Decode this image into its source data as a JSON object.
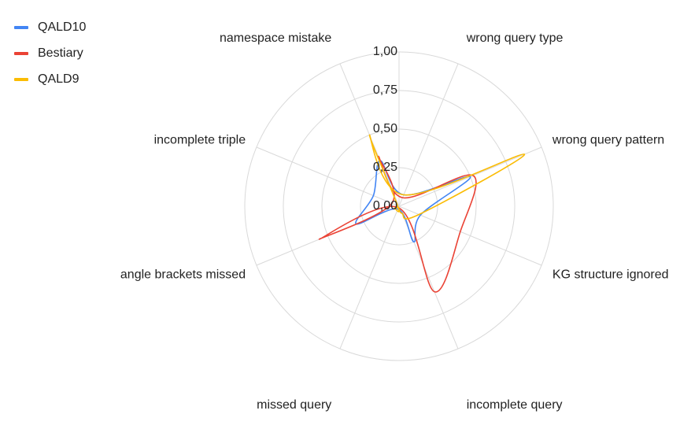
{
  "chart_data": {
    "type": "radar",
    "title": "",
    "categories": [
      "wrong query type",
      "wrong query pattern",
      "KG structure ignored",
      "incomplete query",
      "missed query",
      "angle brackets missed",
      "incomplete triple",
      "namespace mistake"
    ],
    "tick_labels": [
      "0,00",
      "0,25",
      "0,50",
      "0,75",
      "1,00"
    ],
    "rlim": [
      0,
      1
    ],
    "legend_position": "top-left",
    "series": [
      {
        "name": "QALD10",
        "color": "#4285F4",
        "values": [
          0.08,
          0.5,
          0.15,
          0.25,
          0.02,
          0.3,
          0.18,
          0.32
        ]
      },
      {
        "name": "Bestiary",
        "color": "#EA4335",
        "values": [
          0.06,
          0.52,
          0.43,
          0.6,
          0.01,
          0.56,
          0.05,
          0.35
        ]
      },
      {
        "name": "QALD9",
        "color": "#FBBC04",
        "values": [
          0.08,
          0.88,
          0.14,
          0.05,
          0.01,
          0.03,
          0.01,
          0.5
        ]
      }
    ]
  }
}
